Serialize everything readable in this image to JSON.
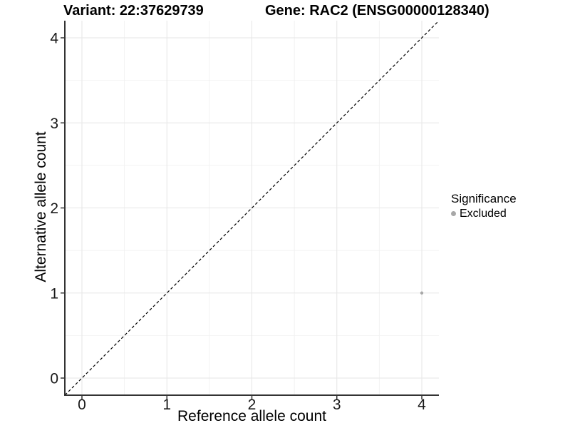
{
  "chart_data": {
    "type": "scatter",
    "title_left": "Variant: 22:37629739",
    "title_right": "Gene: RAC2 (ENSG00000128340)",
    "xlabel": "Reference allele count",
    "ylabel": "Alternative allele count",
    "x_ticks": [
      0,
      1,
      2,
      3,
      4
    ],
    "y_ticks": [
      0,
      1,
      2,
      3,
      4
    ],
    "xlim": [
      -0.2,
      4.2
    ],
    "ylim": [
      -0.2,
      4.2
    ],
    "grid": {
      "major": true,
      "minor": true
    },
    "identity_line": {
      "shown": true,
      "style": "dashed",
      "color": "#000000",
      "from": [
        -0.2,
        -0.2
      ],
      "to": [
        4.2,
        4.2
      ]
    },
    "series": [
      {
        "name": "Excluded",
        "color": "#a8a8a8",
        "points": [
          {
            "x": 4,
            "y": 1
          }
        ]
      }
    ],
    "legend": {
      "title": "Significance",
      "position": "right",
      "entries": [
        {
          "label": "Excluded",
          "color": "#a8a8a8"
        }
      ]
    }
  },
  "colors": {
    "background": "#ffffff",
    "grid_major": "#e6e6e6",
    "grid_minor": "#f2f2f2",
    "axis_line": "#333333",
    "tick_label": "#1a1a1a",
    "title_text": "#000000"
  }
}
